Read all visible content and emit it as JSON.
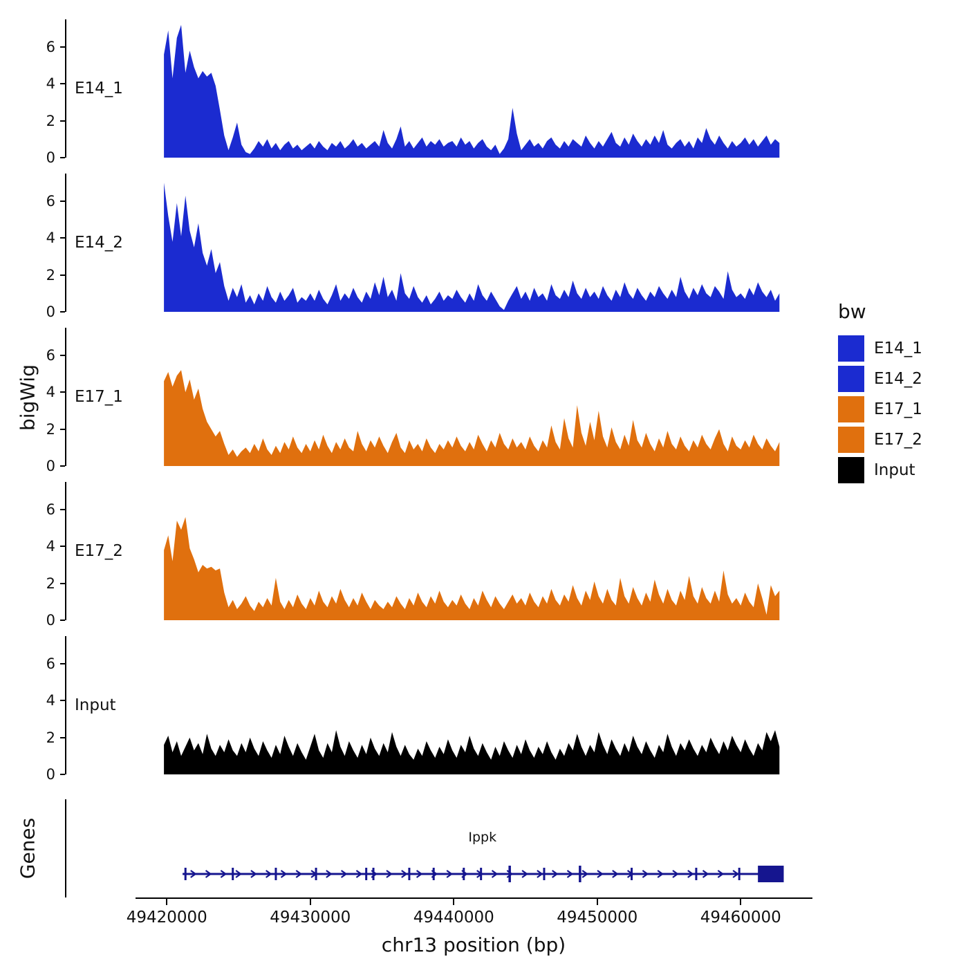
{
  "legend": {
    "title": "bw",
    "items": [
      {
        "label": "E14_1",
        "color": "#1b2bd0"
      },
      {
        "label": "E14_2",
        "color": "#1b2bd0"
      },
      {
        "label": "E17_1",
        "color": "#e0700e"
      },
      {
        "label": "E17_2",
        "color": "#e0700e"
      },
      {
        "label": "Input",
        "color": "#000000"
      }
    ]
  },
  "chart_data": {
    "type": "area",
    "title": "",
    "xlabel": "chr13 position (bp)",
    "ylabel": "bigWig",
    "x_domain": [
      49413000,
      49465000
    ],
    "x_ticks": [
      49420000,
      49430000,
      49440000,
      49450000,
      49460000
    ],
    "y_ticks": [
      0,
      2,
      4,
      6
    ],
    "ylim": [
      0,
      7.5
    ],
    "x_start": 49419800,
    "x_step": 300,
    "tracks": [
      {
        "name": "E14_1",
        "color": "#1b2bd0",
        "values": [
          5.6,
          6.9,
          4.3,
          6.5,
          7.2,
          4.6,
          5.8,
          4.9,
          4.3,
          4.7,
          4.4,
          4.6,
          3.9,
          2.6,
          1.2,
          0.4,
          1.1,
          1.9,
          0.7,
          0.3,
          0.2,
          0.5,
          0.9,
          0.6,
          1.0,
          0.5,
          0.8,
          0.4,
          0.7,
          0.9,
          0.5,
          0.7,
          0.4,
          0.6,
          0.8,
          0.5,
          0.9,
          0.6,
          0.4,
          0.8,
          0.6,
          0.9,
          0.5,
          0.7,
          1.0,
          0.6,
          0.8,
          0.5,
          0.7,
          0.9,
          0.6,
          1.5,
          0.8,
          0.5,
          1.0,
          1.7,
          0.6,
          0.9,
          0.5,
          0.8,
          1.1,
          0.6,
          0.9,
          0.7,
          1.0,
          0.6,
          0.8,
          0.9,
          0.6,
          1.1,
          0.7,
          0.9,
          0.5,
          0.8,
          1.0,
          0.6,
          0.4,
          0.7,
          0.2,
          0.5,
          1.0,
          2.7,
          1.3,
          0.4,
          0.7,
          1.0,
          0.6,
          0.8,
          0.5,
          0.9,
          1.1,
          0.7,
          0.5,
          0.9,
          0.6,
          1.0,
          0.8,
          0.6,
          1.2,
          0.8,
          0.5,
          0.9,
          0.6,
          1.0,
          1.4,
          0.8,
          0.6,
          1.1,
          0.7,
          1.3,
          0.9,
          0.6,
          1.0,
          0.7,
          1.2,
          0.8,
          1.5,
          0.7,
          0.5,
          0.8,
          1.0,
          0.6,
          0.9,
          0.5,
          1.1,
          0.8,
          1.6,
          1.0,
          0.7,
          1.2,
          0.8,
          0.5,
          0.9,
          0.6,
          0.8,
          1.1,
          0.7,
          1.0,
          0.6,
          0.9,
          1.2,
          0.7,
          1.0,
          0.8
        ]
      },
      {
        "name": "E14_2",
        "color": "#1b2bd0",
        "values": [
          7.0,
          5.2,
          3.8,
          5.9,
          4.1,
          6.3,
          4.4,
          3.5,
          4.8,
          3.2,
          2.5,
          3.4,
          2.1,
          2.7,
          1.4,
          0.6,
          1.3,
          0.8,
          1.5,
          0.5,
          0.9,
          0.4,
          1.0,
          0.6,
          1.4,
          0.8,
          0.5,
          1.1,
          0.6,
          0.9,
          1.3,
          0.5,
          0.8,
          0.6,
          1.0,
          0.6,
          1.2,
          0.7,
          0.4,
          0.9,
          1.5,
          0.6,
          1.0,
          0.7,
          1.3,
          0.8,
          0.5,
          1.1,
          0.7,
          1.6,
          0.9,
          1.9,
          0.8,
          1.2,
          0.6,
          2.1,
          1.0,
          0.7,
          1.4,
          0.8,
          0.5,
          0.9,
          0.4,
          0.7,
          1.1,
          0.6,
          0.9,
          0.7,
          1.2,
          0.8,
          0.5,
          1.0,
          0.6,
          1.5,
          0.9,
          0.6,
          1.1,
          0.7,
          0.3,
          0.1,
          0.6,
          1.0,
          1.4,
          0.7,
          1.1,
          0.6,
          1.3,
          0.8,
          1.0,
          0.6,
          1.5,
          0.9,
          0.7,
          1.2,
          0.8,
          1.7,
          1.0,
          0.7,
          1.3,
          0.8,
          1.1,
          0.7,
          1.4,
          0.9,
          0.6,
          1.2,
          0.8,
          1.6,
          1.0,
          0.7,
          1.3,
          0.9,
          0.6,
          1.1,
          0.8,
          1.4,
          1.0,
          0.7,
          1.2,
          0.8,
          1.9,
          1.1,
          0.7,
          1.3,
          0.9,
          1.5,
          1.0,
          0.8,
          1.4,
          1.1,
          0.7,
          2.2,
          1.2,
          0.8,
          1.0,
          0.7,
          1.3,
          0.9,
          1.6,
          1.1,
          0.8,
          1.2,
          0.6,
          1.0
        ]
      },
      {
        "name": "E17_1",
        "color": "#e0700e",
        "values": [
          4.6,
          5.1,
          4.3,
          4.9,
          5.2,
          4.0,
          4.7,
          3.6,
          4.2,
          3.1,
          2.4,
          2.0,
          1.6,
          1.9,
          1.2,
          0.6,
          0.9,
          0.5,
          0.8,
          1.0,
          0.7,
          1.2,
          0.8,
          1.5,
          0.9,
          0.6,
          1.1,
          0.7,
          1.3,
          0.9,
          1.6,
          1.0,
          0.7,
          1.2,
          0.8,
          1.4,
          0.9,
          1.7,
          1.1,
          0.7,
          1.3,
          0.9,
          1.5,
          1.0,
          0.8,
          1.9,
          1.2,
          0.8,
          1.4,
          1.0,
          1.6,
          1.1,
          0.7,
          1.3,
          1.8,
          1.0,
          0.7,
          1.4,
          0.9,
          1.2,
          0.8,
          1.5,
          1.0,
          0.7,
          1.2,
          0.9,
          1.4,
          1.0,
          1.6,
          1.1,
          0.8,
          1.3,
          0.9,
          1.7,
          1.2,
          0.8,
          1.4,
          1.0,
          1.8,
          1.2,
          0.9,
          1.5,
          1.0,
          1.3,
          0.9,
          1.6,
          1.1,
          0.8,
          1.4,
          1.0,
          2.2,
          1.3,
          0.9,
          2.6,
          1.5,
          1.0,
          3.3,
          1.8,
          1.1,
          2.4,
          1.4,
          3.0,
          1.6,
          1.0,
          2.1,
          1.3,
          0.9,
          1.7,
          1.1,
          2.5,
          1.4,
          1.0,
          1.8,
          1.2,
          0.8,
          1.5,
          1.0,
          1.9,
          1.2,
          0.9,
          1.6,
          1.1,
          0.8,
          1.4,
          1.0,
          1.7,
          1.2,
          0.9,
          1.5,
          2.0,
          1.2,
          0.8,
          1.6,
          1.1,
          0.9,
          1.4,
          1.0,
          1.7,
          1.2,
          0.9,
          1.5,
          1.1,
          0.8,
          1.3
        ]
      },
      {
        "name": "E17_2",
        "color": "#e0700e",
        "values": [
          3.8,
          4.6,
          3.2,
          5.4,
          4.9,
          5.6,
          3.9,
          3.3,
          2.6,
          3.0,
          2.8,
          2.9,
          2.7,
          2.8,
          1.5,
          0.7,
          1.1,
          0.6,
          0.9,
          1.3,
          0.8,
          0.5,
          1.0,
          0.7,
          1.2,
          0.8,
          2.3,
          1.0,
          0.6,
          1.1,
          0.7,
          1.4,
          0.9,
          0.6,
          1.2,
          0.8,
          1.6,
          1.0,
          0.7,
          1.3,
          0.9,
          1.7,
          1.1,
          0.7,
          1.2,
          0.8,
          1.5,
          1.0,
          0.6,
          1.1,
          0.8,
          0.6,
          1.0,
          0.7,
          1.3,
          0.9,
          0.6,
          1.2,
          0.8,
          1.5,
          1.0,
          0.7,
          1.3,
          0.9,
          1.6,
          1.0,
          0.7,
          1.1,
          0.8,
          1.4,
          0.9,
          0.6,
          1.2,
          0.8,
          1.6,
          1.1,
          0.7,
          1.3,
          0.9,
          0.6,
          1.0,
          1.4,
          0.9,
          1.2,
          0.8,
          1.5,
          1.0,
          0.7,
          1.3,
          0.9,
          1.7,
          1.1,
          0.8,
          1.4,
          1.0,
          1.9,
          1.2,
          0.8,
          1.6,
          1.1,
          2.1,
          1.3,
          0.9,
          1.7,
          1.1,
          0.8,
          2.3,
          1.3,
          0.9,
          1.8,
          1.2,
          0.8,
          1.5,
          1.0,
          2.2,
          1.4,
          0.9,
          1.7,
          1.1,
          0.8,
          1.6,
          1.1,
          2.4,
          1.3,
          0.9,
          1.8,
          1.2,
          0.9,
          1.6,
          1.0,
          2.7,
          1.4,
          0.9,
          1.2,
          0.8,
          1.5,
          1.0,
          0.7,
          2.0,
          1.2,
          0.3,
          1.9,
          1.3,
          1.6
        ]
      },
      {
        "name": "Input",
        "color": "#000000",
        "values": [
          1.6,
          2.1,
          1.2,
          1.8,
          1.0,
          1.5,
          2.0,
          1.3,
          1.7,
          1.1,
          2.2,
          1.4,
          1.0,
          1.6,
          1.2,
          1.9,
          1.3,
          1.0,
          1.7,
          1.2,
          2.0,
          1.4,
          1.0,
          1.8,
          1.3,
          0.9,
          1.6,
          1.1,
          2.1,
          1.5,
          1.0,
          1.7,
          1.2,
          0.8,
          1.5,
          2.2,
          1.3,
          0.9,
          1.7,
          1.2,
          2.4,
          1.5,
          1.0,
          1.8,
          1.3,
          0.9,
          1.6,
          1.1,
          2.0,
          1.4,
          1.0,
          1.7,
          1.2,
          2.3,
          1.5,
          1.0,
          1.6,
          1.1,
          0.8,
          1.4,
          1.0,
          1.8,
          1.3,
          0.9,
          1.5,
          1.1,
          1.9,
          1.3,
          0.9,
          1.6,
          1.2,
          2.1,
          1.4,
          1.0,
          1.7,
          1.2,
          0.8,
          1.5,
          1.0,
          1.8,
          1.3,
          0.9,
          1.6,
          1.1,
          1.9,
          1.3,
          0.9,
          1.5,
          1.1,
          1.8,
          1.2,
          0.8,
          1.4,
          1.0,
          1.7,
          1.3,
          2.2,
          1.5,
          1.0,
          1.6,
          1.2,
          2.3,
          1.6,
          1.1,
          1.9,
          1.4,
          1.0,
          1.7,
          1.2,
          2.1,
          1.5,
          1.1,
          1.8,
          1.3,
          0.9,
          1.6,
          1.2,
          2.2,
          1.5,
          1.0,
          1.7,
          1.3,
          1.9,
          1.4,
          1.0,
          1.6,
          1.2,
          2.0,
          1.5,
          1.1,
          1.8,
          1.3,
          2.1,
          1.6,
          1.2,
          1.9,
          1.4,
          1.0,
          1.7,
          1.3,
          2.3,
          1.8,
          2.4,
          1.5
        ]
      }
    ],
    "gene_track": {
      "label": "Genes",
      "color": "#15158f",
      "gene": {
        "name": "Ippk",
        "name_pos": 49442000,
        "strand": "+",
        "start": 49421100,
        "end": 49462800,
        "exon_box": [
          49461200,
          49463000
        ],
        "exon_ticks": [
          49421300,
          49424600,
          49427600,
          49430400,
          49433900,
          49434400,
          49436900,
          49438600,
          49440700,
          49441900,
          49446300,
          49452400,
          49456900,
          49459900
        ],
        "tall_exon_ticks": [
          49443900,
          49448800
        ]
      }
    }
  }
}
